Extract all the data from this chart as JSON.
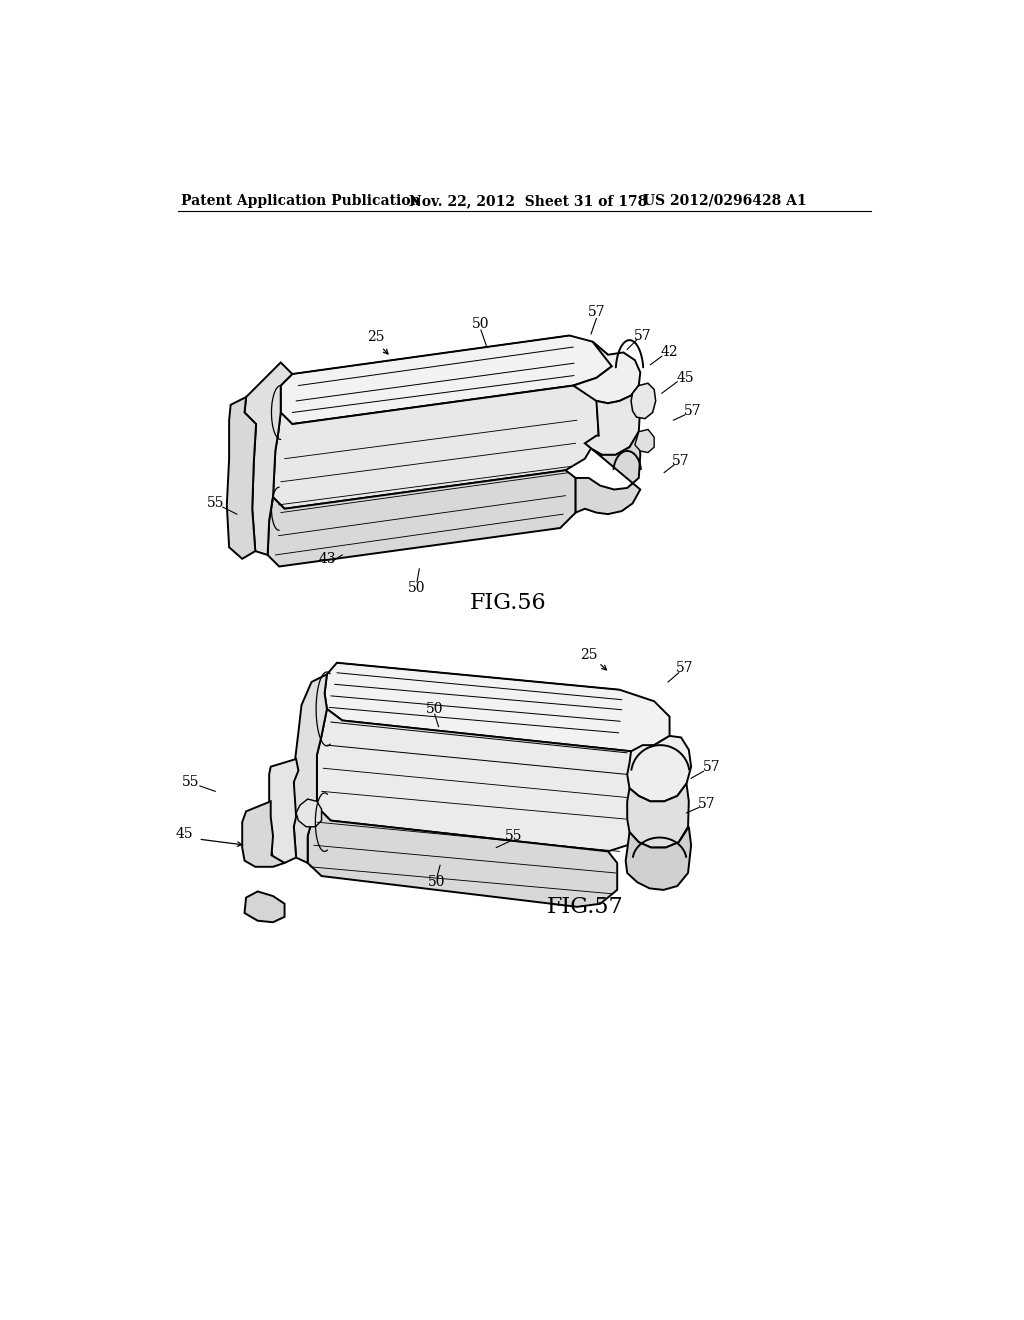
{
  "bg_color": "#ffffff",
  "header_left": "Patent Application Publication",
  "header_mid": "Nov. 22, 2012  Sheet 31 of 178",
  "header_right": "US 2012/0296428 A1",
  "fig56_label": "FIG.56",
  "fig57_label": "FIG.57",
  "header_font_size": 10,
  "label_font_size": 16,
  "callout_font_size": 10,
  "line_color": "#000000",
  "shading_light": "#f0f0f0",
  "shading_mid": "#e0e0e0",
  "shading_dark": "#cccccc",
  "shading_darker": "#b8b8b8"
}
